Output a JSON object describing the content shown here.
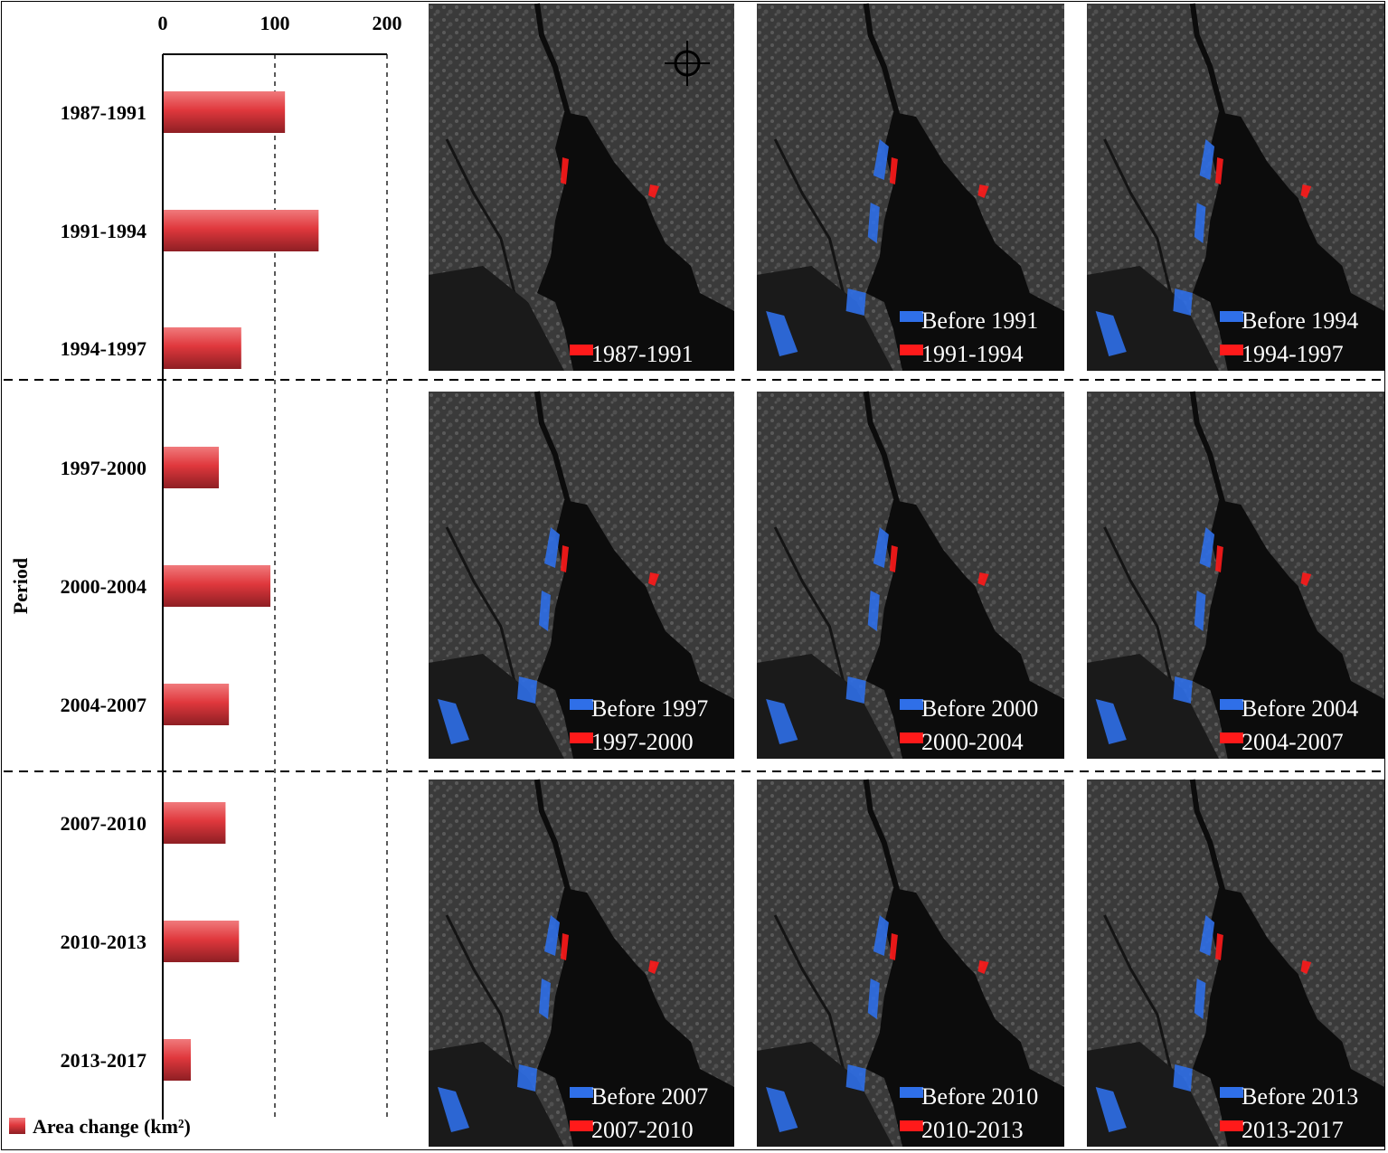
{
  "chart_data": {
    "type": "bar",
    "orientation": "horizontal",
    "categories": [
      "1987-1991",
      "1991-1994",
      "1994-1997",
      "1997-2000",
      "2000-2004",
      "2004-2007",
      "2007-2010",
      "2010-2013",
      "2013-2017"
    ],
    "series": [
      {
        "name": "Area change (km²)",
        "values": [
          109,
          139,
          70,
          50,
          96,
          59,
          56,
          68,
          25
        ]
      }
    ],
    "xlim": [
      0,
      200
    ],
    "x_ticks": [
      "0",
      "100",
      "200"
    ],
    "ylabel": "Period",
    "grid": "vertical dashed at 100 and 200",
    "legend_position": "bottom-left",
    "bar_color": "#e0383d"
  },
  "legend": {
    "label": "Area change (km²)"
  },
  "maps": {
    "panels": [
      {
        "labels": [
          {
            "color": "red",
            "text": "1987-1991"
          }
        ]
      },
      {
        "labels": [
          {
            "color": "blue",
            "text": "Before 1991"
          },
          {
            "color": "red",
            "text": "1991-1994"
          }
        ]
      },
      {
        "labels": [
          {
            "color": "blue",
            "text": "Before 1994"
          },
          {
            "color": "red",
            "text": "1994-1997"
          }
        ]
      },
      {
        "labels": [
          {
            "color": "blue",
            "text": "Before 1997"
          },
          {
            "color": "red",
            "text": "1997-2000"
          }
        ]
      },
      {
        "labels": [
          {
            "color": "blue",
            "text": "Before 2000"
          },
          {
            "color": "red",
            "text": "2000-2004"
          }
        ]
      },
      {
        "labels": [
          {
            "color": "blue",
            "text": "Before 2004"
          },
          {
            "color": "red",
            "text": "2004-2007"
          }
        ]
      },
      {
        "labels": [
          {
            "color": "blue",
            "text": "Before 2007"
          },
          {
            "color": "red",
            "text": "2007-2010"
          }
        ]
      },
      {
        "labels": [
          {
            "color": "blue",
            "text": "Before 2010"
          },
          {
            "color": "red",
            "text": "2010-2013"
          }
        ]
      },
      {
        "labels": [
          {
            "color": "blue",
            "text": "Before 2013"
          },
          {
            "color": "red",
            "text": "2013-2017"
          }
        ]
      }
    ],
    "colors": {
      "blue": "#2f6fe8",
      "red": "#ff1a1a"
    },
    "north_arrow_icon": "compass-icon"
  }
}
